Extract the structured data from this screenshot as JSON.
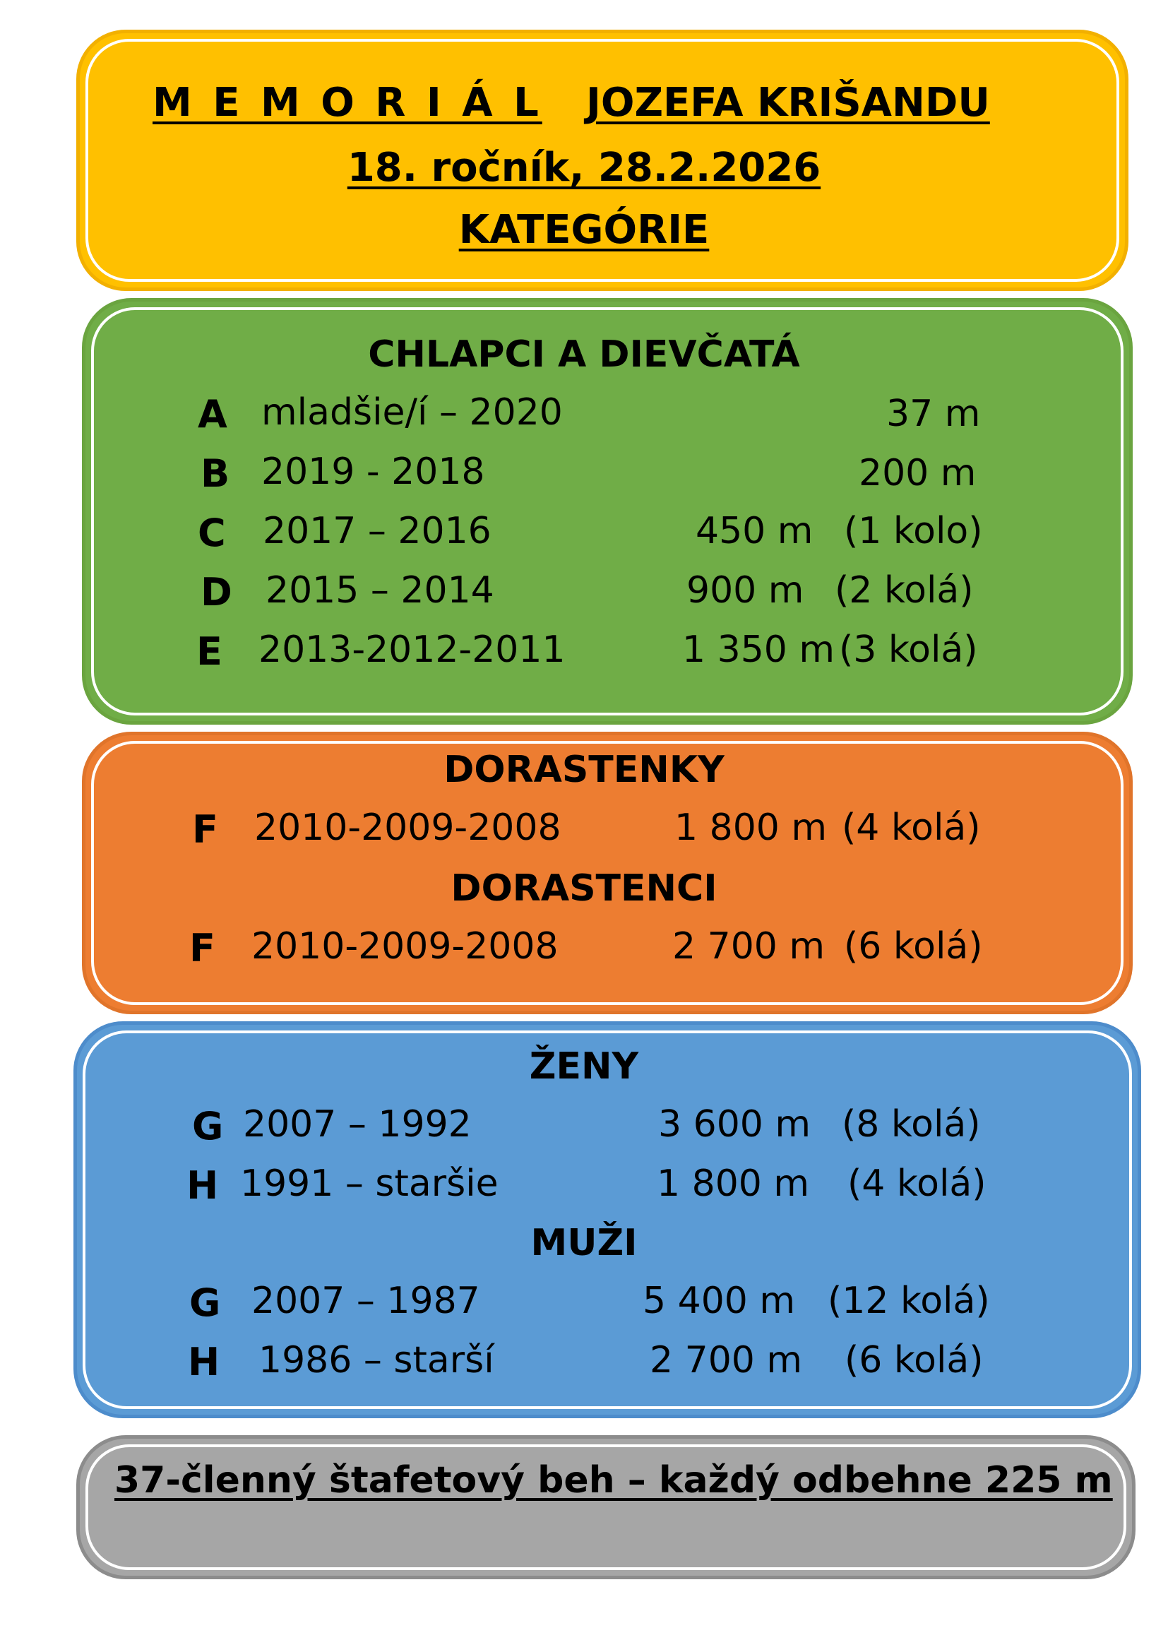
{
  "title": {
    "line1_spaced": "M E M O R I Á L",
    "line1_name": "JOZEFA KRIŠANDU",
    "line2": "18. ročník, 28.2.2026",
    "line3": "KATEGÓRIE"
  },
  "children": {
    "heading": "CHLAPCI A DIEVČATÁ",
    "rows": [
      {
        "cat": "A",
        "years": "mladšie/í – 2020",
        "distance": "37 m",
        "laps": ""
      },
      {
        "cat": "B",
        "years": "2019 - 2018",
        "distance": "200 m",
        "laps": ""
      },
      {
        "cat": "C",
        "years": "2017 – 2016",
        "distance": "450 m",
        "laps": "(1 kolo)"
      },
      {
        "cat": "D",
        "years": "2015 – 2014",
        "distance": "900 m",
        "laps": "(2 kolá)"
      },
      {
        "cat": "E",
        "years": "2013-2012-2011",
        "distance": "1 350 m",
        "laps": "(3 kolá)"
      }
    ]
  },
  "juniors": {
    "girls_heading": "DORASTENKY",
    "girls_row": {
      "cat": "F",
      "years": "2010-2009-2008",
      "distance": "1 800 m",
      "laps": "(4 kolá)"
    },
    "boys_heading": "DORASTENCI",
    "boys_row": {
      "cat": "F",
      "years": "2010-2009-2008",
      "distance": "2 700 m",
      "laps": "(6 kolá)"
    }
  },
  "adults": {
    "women_heading": "ŽENY",
    "women_rows": [
      {
        "cat": "G",
        "years": "2007 – 1992",
        "distance": "3 600 m",
        "laps": "(8 kolá)"
      },
      {
        "cat": "H",
        "years": "1991 – staršie",
        "distance": "1 800 m",
        "laps": "(4 kolá)"
      }
    ],
    "men_heading": "MUŽI",
    "men_rows": [
      {
        "cat": "G",
        "years": "2007 – 1987",
        "distance": "5 400 m",
        "laps": "(12 kolá)"
      },
      {
        "cat": "H",
        "years": "1986 – starší",
        "distance": "2 700 m",
        "laps": "(6 kolá)"
      }
    ]
  },
  "relay": {
    "text": "37-členný štafetový beh – každý odbehne 225 m"
  }
}
